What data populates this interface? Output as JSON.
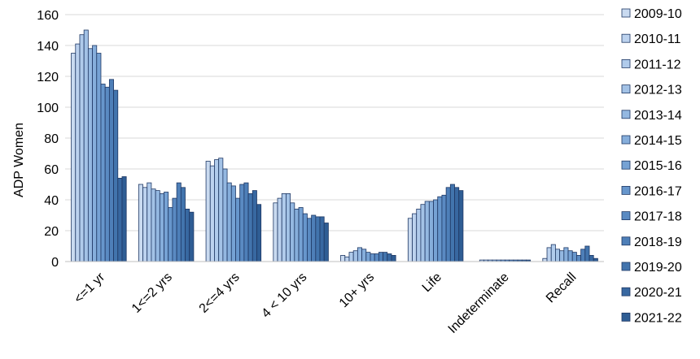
{
  "chart_data": {
    "type": "bar",
    "ylabel": "ADP Women",
    "xlabel": "",
    "title": "",
    "ylim": [
      0,
      160
    ],
    "yticks": [
      0,
      20,
      40,
      60,
      80,
      100,
      120,
      140,
      160
    ],
    "grid": true,
    "legend_position": "right",
    "categories": [
      "<=1 yr",
      "1<=2 yrs",
      "2<=4 yrs",
      "4 < 10 yrs",
      "10+ yrs",
      "Life",
      "Indeterminate",
      "Recall"
    ],
    "series": [
      {
        "name": "2009-10",
        "color": "#c9daf0",
        "values": [
          135,
          50,
          65,
          38,
          4,
          28,
          0,
          2
        ]
      },
      {
        "name": "2010-11",
        "color": "#bcd2ee",
        "values": [
          141,
          48,
          62,
          41,
          3,
          31,
          1,
          9
        ]
      },
      {
        "name": "2011-12",
        "color": "#b0cbeb",
        "values": [
          147,
          51,
          66,
          44,
          6,
          34,
          1,
          11
        ]
      },
      {
        "name": "2012-13",
        "color": "#a3c2e6",
        "values": [
          150,
          47,
          67,
          44,
          7,
          37,
          1,
          8
        ]
      },
      {
        "name": "2013-14",
        "color": "#94b8e1",
        "values": [
          138,
          46,
          60,
          38,
          9,
          39,
          1,
          7
        ]
      },
      {
        "name": "2014-15",
        "color": "#86aedb",
        "values": [
          140,
          44,
          51,
          34,
          8,
          39,
          1,
          9
        ]
      },
      {
        "name": "2015-16",
        "color": "#76a2d4",
        "values": [
          135,
          45,
          49,
          35,
          6,
          40,
          1,
          7
        ]
      },
      {
        "name": "2016-17",
        "color": "#6796cc",
        "values": [
          115,
          35,
          41,
          31,
          5,
          42,
          1,
          6
        ]
      },
      {
        "name": "2017-18",
        "color": "#5a8ac2",
        "values": [
          113,
          41,
          50,
          28,
          5,
          43,
          1,
          4
        ]
      },
      {
        "name": "2018-19",
        "color": "#4e7fb8",
        "values": [
          118,
          51,
          51,
          30,
          6,
          48,
          1,
          8
        ]
      },
      {
        "name": "2019-20",
        "color": "#4274ad",
        "values": [
          111,
          48,
          44,
          29,
          6,
          50,
          1,
          10
        ]
      },
      {
        "name": "2020-21",
        "color": "#3868a1",
        "values": [
          54,
          34,
          46,
          29,
          5,
          48,
          1,
          4
        ]
      },
      {
        "name": "2021-22",
        "color": "#2f5d94",
        "values": [
          55,
          32,
          37,
          25,
          4,
          46,
          1,
          2
        ]
      }
    ]
  }
}
